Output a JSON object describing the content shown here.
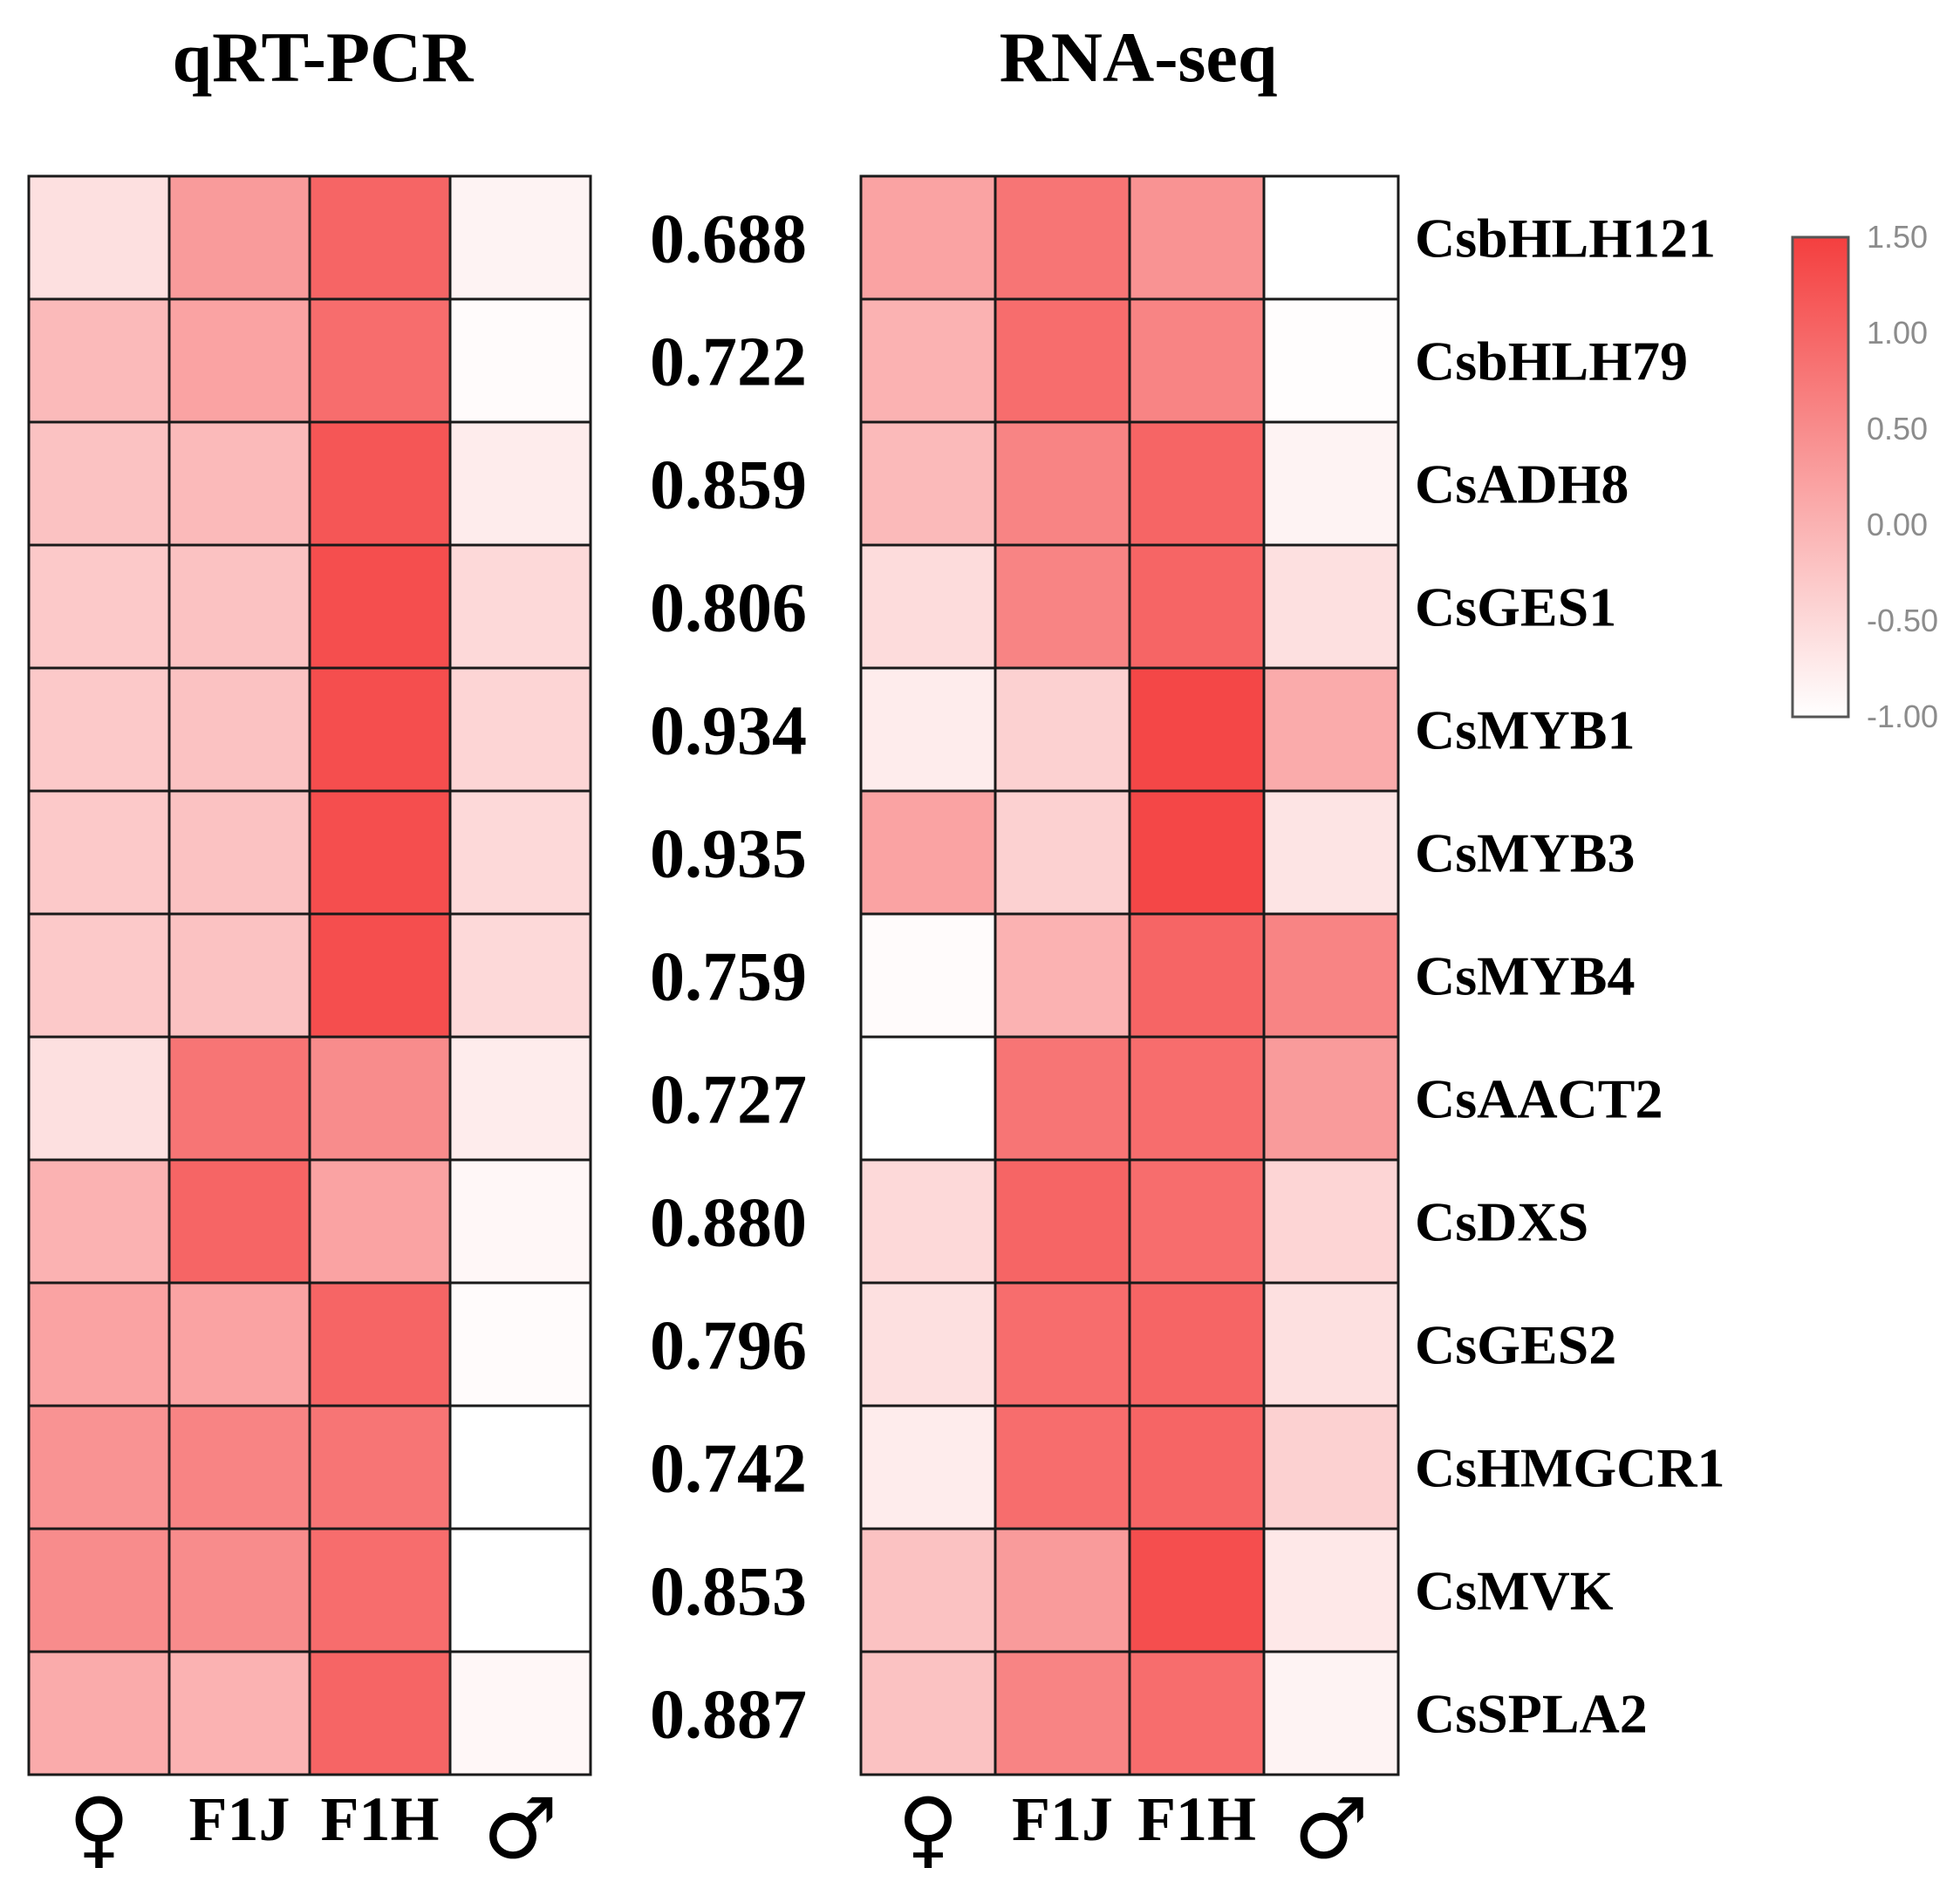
{
  "chart_data": {
    "type": "heatmap",
    "panels": [
      {
        "title": "qRT-PCR",
        "columns": [
          "♀",
          "F1J",
          "F1H",
          "♂"
        ],
        "values": [
          [
            -0.6,
            0.3,
            1.0,
            -0.85
          ],
          [
            -0.1,
            0.2,
            0.9,
            -0.95
          ],
          [
            -0.2,
            -0.1,
            1.2,
            -0.75
          ],
          [
            -0.3,
            -0.2,
            1.3,
            -0.5
          ],
          [
            -0.3,
            -0.2,
            1.3,
            -0.45
          ],
          [
            -0.3,
            -0.2,
            1.3,
            -0.5
          ],
          [
            -0.3,
            -0.2,
            1.3,
            -0.5
          ],
          [
            -0.6,
            0.8,
            0.5,
            -0.75
          ],
          [
            0.0,
            1.0,
            0.2,
            -0.9
          ],
          [
            0.2,
            0.2,
            1.0,
            -0.95
          ],
          [
            0.4,
            0.6,
            0.8,
            -1.0
          ],
          [
            0.5,
            0.5,
            0.9,
            -1.0
          ],
          [
            0.1,
            0.0,
            1.0,
            -0.9
          ]
        ]
      },
      {
        "title": "RNA-seq",
        "columns": [
          "♀",
          "F1J",
          "F1H",
          "♂"
        ],
        "values": [
          [
            0.2,
            0.8,
            0.4,
            -1.0
          ],
          [
            0.0,
            0.9,
            0.6,
            -0.97
          ],
          [
            -0.1,
            0.6,
            1.0,
            -0.85
          ],
          [
            -0.55,
            0.6,
            1.0,
            -0.6
          ],
          [
            -0.75,
            -0.4,
            1.4,
            0.1
          ],
          [
            0.2,
            -0.4,
            1.4,
            -0.65
          ],
          [
            -0.95,
            0.0,
            1.0,
            0.6
          ],
          [
            -1.0,
            0.8,
            0.9,
            0.3
          ],
          [
            -0.5,
            1.0,
            0.9,
            -0.45
          ],
          [
            -0.6,
            0.9,
            1.0,
            -0.6
          ],
          [
            -0.75,
            0.9,
            1.0,
            -0.4
          ],
          [
            -0.2,
            0.3,
            1.3,
            -0.7
          ],
          [
            -0.2,
            0.6,
            0.9,
            -0.85
          ]
        ]
      }
    ],
    "genes": [
      "CsbHLH121",
      "CsbHLH79",
      "CsADH8",
      "CsGES1",
      "CsMYB1",
      "CsMYB3",
      "CsMYB4",
      "CsAACT2",
      "CsDXS",
      "CsGES2",
      "CsHMGCR1",
      "CsMVK",
      "CsSPLA2"
    ],
    "correlations": [
      "0.688",
      "0.722",
      "0.859",
      "0.806",
      "0.934",
      "0.935",
      "0.759",
      "0.727",
      "0.880",
      "0.796",
      "0.742",
      "0.853",
      "0.887"
    ],
    "color_scale": {
      "min": -1.0,
      "max": 1.5,
      "low_color": "#ffffff",
      "high_color": "#f43f3f",
      "ticks": [
        "1.50",
        "1.00",
        "0.50",
        "0.00",
        "-0.50",
        "-1.00"
      ]
    }
  }
}
